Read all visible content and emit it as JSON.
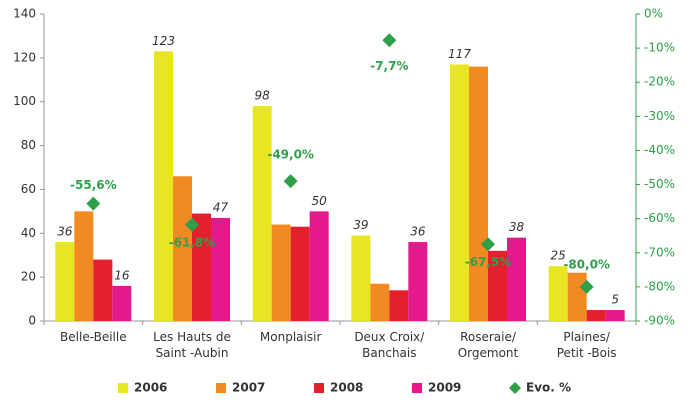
{
  "chart_data": {
    "type": "bar",
    "categories": [
      "Belle-Beille",
      "Les Hauts de\nSaint -Aubin",
      "Monplaisir",
      "Deux Croix/\nBanchais",
      "Roseraie/\nOrgemont",
      "Plaines/\nPetit -Bois"
    ],
    "series": [
      {
        "name": "2006",
        "color": "#e8e623",
        "values": [
          36,
          123,
          98,
          39,
          117,
          25
        ],
        "show_labels": true
      },
      {
        "name": "2007",
        "color": "#f28a24",
        "values": [
          50,
          66,
          44,
          17,
          116,
          22
        ],
        "show_labels": false
      },
      {
        "name": "2008",
        "color": "#e3202b",
        "values": [
          28,
          49,
          43,
          14,
          32,
          5
        ],
        "show_labels": false
      },
      {
        "name": "2009",
        "color": "#e4198b",
        "values": [
          16,
          47,
          50,
          36,
          38,
          5
        ],
        "show_labels": true
      },
      {
        "name": "Evo. %",
        "type": "scatter",
        "axis": "y2",
        "color": "#2da049",
        "values": [
          -55.6,
          -61.8,
          -49.0,
          -7.7,
          -67.5,
          -80.0
        ],
        "value_labels": [
          "-55,6%",
          "-61,8%",
          "-49,0%",
          "-7,7%",
          "-67,5%",
          "-80,0%"
        ]
      }
    ],
    "ylim": [
      0,
      140
    ],
    "yticks": [
      0,
      20,
      40,
      60,
      80,
      100,
      120,
      140
    ],
    "y2lim": [
      -90,
      0
    ],
    "y2ticks": [
      {
        "value": 0,
        "label": "0%"
      },
      {
        "value": -10,
        "label": "-10%"
      },
      {
        "value": -20,
        "label": "-20%"
      },
      {
        "value": -30,
        "label": "-30%"
      },
      {
        "value": -40,
        "label": "-40%"
      },
      {
        "value": -50,
        "label": "-50%"
      },
      {
        "value": -60,
        "label": "-60%"
      },
      {
        "value": -70,
        "label": "-70%"
      },
      {
        "value": -80,
        "label": "-80%"
      },
      {
        "value": -90,
        "label": "-90%"
      }
    ],
    "grid": false,
    "legend": "bottom"
  }
}
